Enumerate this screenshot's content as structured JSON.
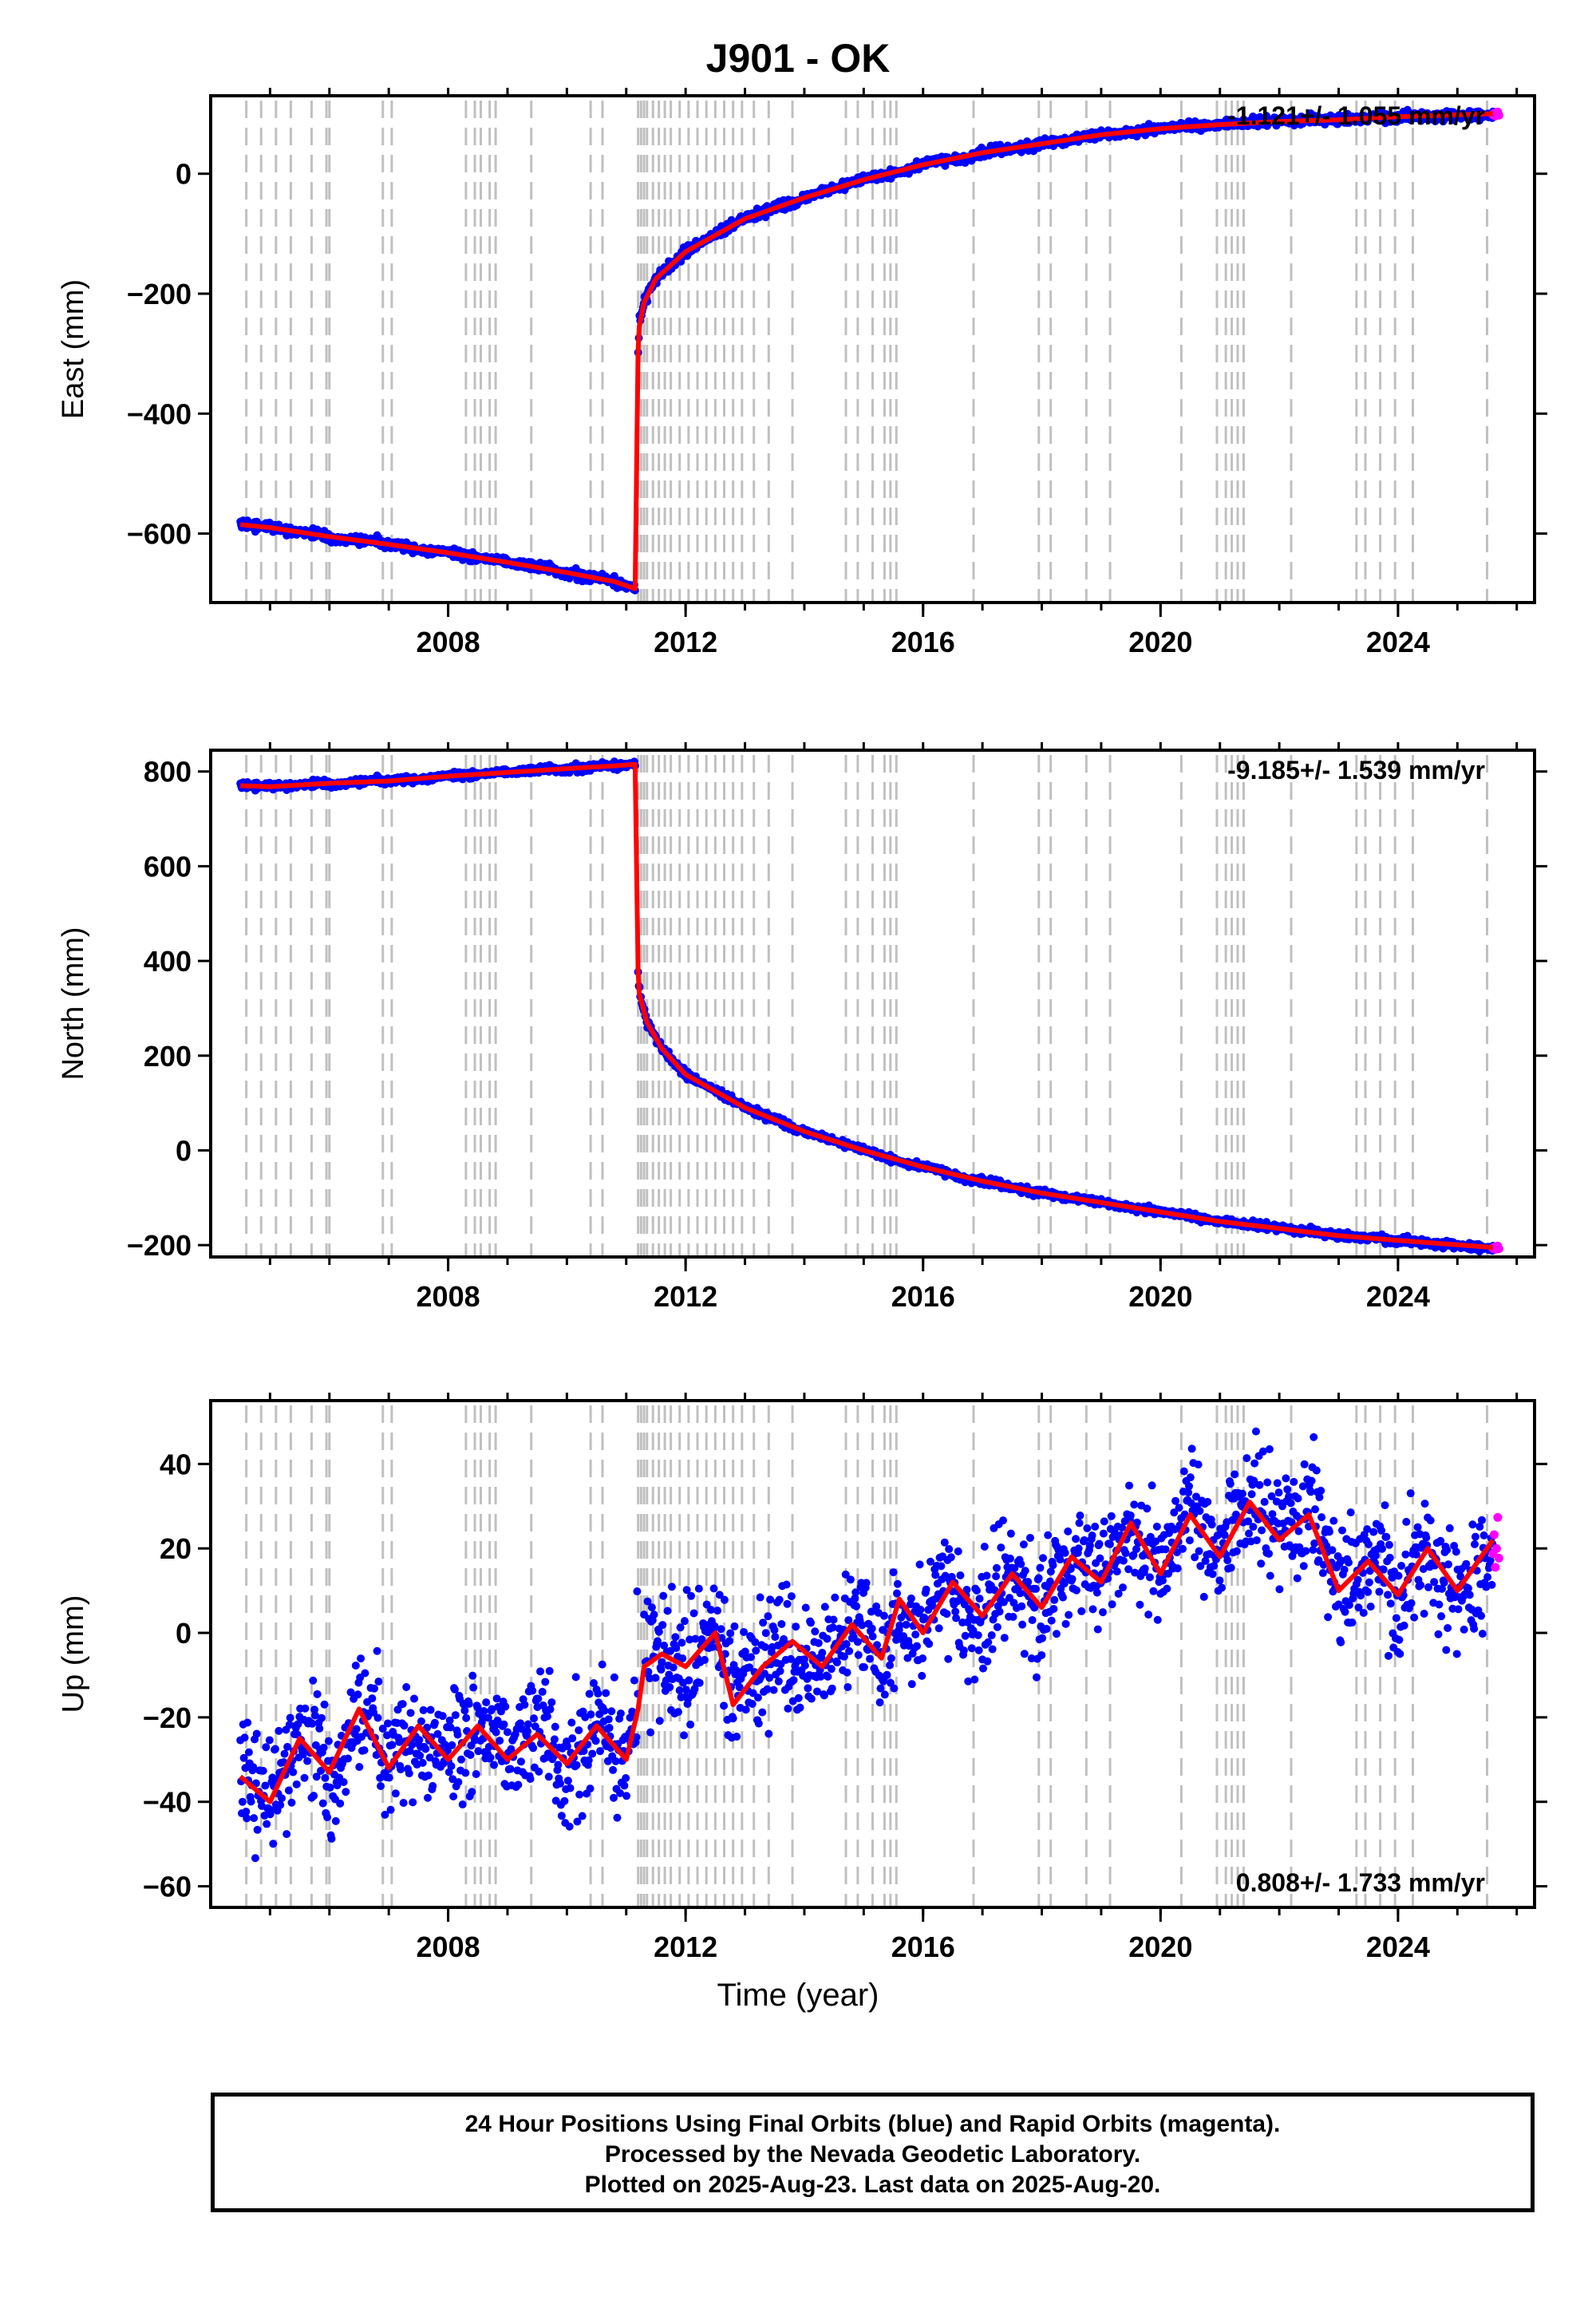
{
  "title": "J901 - OK",
  "xlabel": "Time (year)",
  "footer": {
    "line1": "24 Hour Positions Using Final Orbits (blue) and Rapid Orbits (magenta).",
    "line2": "Processed by the Nevada Geodetic Laboratory.",
    "line3": "Plotted on 2025-Aug-23. Last data on 2025-Aug-20."
  },
  "colors": {
    "final_orbits": "#0000ff",
    "rapid_orbits": "#ff00ff",
    "model": "#ff0000",
    "event_lines": "#c0c0c0"
  },
  "chart_data": [
    {
      "type": "scatter",
      "name": "east",
      "ylabel": "East (mm)",
      "rate_text": "-1.121+/- 1.055 mm/yr",
      "xlim": [
        2004.0,
        2026.3
      ],
      "ylim": [
        -715,
        130
      ],
      "xticks": [
        2008,
        2012,
        2016,
        2020,
        2024
      ],
      "yticks": [
        -600,
        -400,
        -200,
        0
      ],
      "series": [
        {
          "x": [
            2004.5,
            2005.0,
            2006.0,
            2007.0,
            2008.0,
            2009.0,
            2010.0,
            2010.8,
            2011.15
          ],
          "y": [
            -585,
            -590,
            -605,
            -618,
            -632,
            -648,
            -665,
            -680,
            -692
          ]
        },
        {
          "x": [
            2011.2,
            2011.22,
            2011.3,
            2011.5,
            2012.0,
            2013.0,
            2014.0,
            2015.0,
            2016.0,
            2017.0,
            2018.0,
            2019.0,
            2020.0,
            2021.0,
            2022.0,
            2023.0,
            2024.0,
            2025.6
          ],
          "y": [
            -295,
            -255,
            -215,
            -175,
            -130,
            -75,
            -40,
            -10,
            15,
            35,
            50,
            65,
            75,
            82,
            87,
            90,
            95,
            100
          ]
        }
      ]
    },
    {
      "type": "scatter",
      "name": "north",
      "ylabel": "North (mm)",
      "rate_text": "-9.185+/- 1.539 mm/yr",
      "xlim": [
        2004.0,
        2026.3
      ],
      "ylim": [
        -225,
        845
      ],
      "xticks": [
        2008,
        2012,
        2016,
        2020,
        2024
      ],
      "yticks": [
        -200,
        0,
        200,
        400,
        600,
        800
      ],
      "series": [
        {
          "x": [
            2004.5,
            2005.0,
            2006.0,
            2007.0,
            2008.0,
            2009.0,
            2010.0,
            2010.8,
            2011.15
          ],
          "y": [
            770,
            768,
            775,
            780,
            790,
            798,
            806,
            812,
            815
          ]
        },
        {
          "x": [
            2011.2,
            2011.22,
            2011.35,
            2011.6,
            2012.0,
            2013.0,
            2014.0,
            2015.0,
            2016.0,
            2017.0,
            2018.0,
            2019.0,
            2020.0,
            2021.0,
            2022.0,
            2023.0,
            2024.0,
            2025.6
          ],
          "y": [
            380,
            330,
            270,
            215,
            160,
            90,
            40,
            0,
            -35,
            -65,
            -90,
            -110,
            -130,
            -150,
            -165,
            -180,
            -190,
            -205
          ]
        }
      ]
    },
    {
      "type": "scatter",
      "name": "up",
      "ylabel": "Up (mm)",
      "rate_text": "0.808+/- 1.733 mm/yr",
      "xlim": [
        2004.0,
        2026.3
      ],
      "ylim": [
        -65,
        55
      ],
      "xticks": [
        2008,
        2012,
        2016,
        2020,
        2024
      ],
      "yticks": [
        -60,
        -40,
        -20,
        0,
        20,
        40
      ],
      "series": [
        {
          "x": [
            2004.5,
            2005.0,
            2005.5,
            2006.0,
            2006.5,
            2007.0,
            2007.5,
            2008.0,
            2008.5,
            2009.0,
            2009.5,
            2010.0,
            2010.5,
            2011.0,
            2011.2
          ],
          "y": [
            -34,
            -40,
            -25,
            -33,
            -18,
            -32,
            -22,
            -30,
            -22,
            -30,
            -24,
            -31,
            -22,
            -30,
            -18
          ]
        },
        {
          "x": [
            2011.3,
            2011.6,
            2012.0,
            2012.5,
            2012.8,
            2013.3,
            2013.8,
            2014.3,
            2014.8,
            2015.3,
            2015.6,
            2016.0,
            2016.5,
            2017.0,
            2017.5,
            2018.0,
            2018.5,
            2019.0,
            2019.5,
            2020.0,
            2020.5,
            2021.0,
            2021.5,
            2022.0,
            2022.5,
            2023.0,
            2023.5,
            2024.0,
            2024.5,
            2025.0,
            2025.6
          ],
          "y": [
            -8,
            -5,
            -8,
            0,
            -17,
            -8,
            -2,
            -8,
            2,
            -6,
            8,
            0,
            12,
            4,
            14,
            6,
            18,
            12,
            26,
            14,
            28,
            18,
            31,
            22,
            28,
            10,
            17,
            9,
            20,
            10,
            22
          ]
        }
      ]
    }
  ]
}
